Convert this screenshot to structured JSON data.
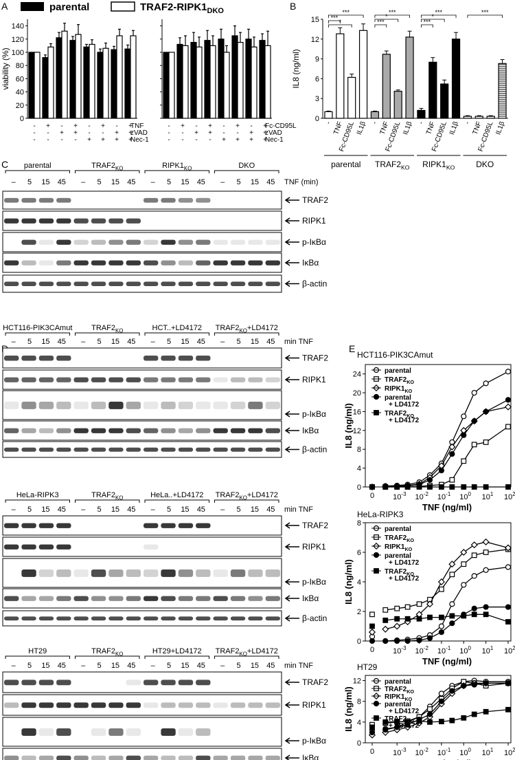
{
  "panels": [
    "A",
    "B",
    "C",
    "D",
    "E"
  ],
  "legend_a": [
    "parental",
    "TRAF2-RIPK1",
    "DKO"
  ],
  "panelA": {
    "ylabel": "viability (%)",
    "yticks": [
      0,
      20,
      40,
      60,
      80,
      100,
      120,
      140
    ],
    "left_rows": [
      {
        "label": "TNF",
        "signs": [
          "-",
          "+",
          "-",
          "+",
          "-",
          "+",
          "-",
          "+"
        ]
      },
      {
        "label": "zVAD",
        "signs": [
          "-",
          "-",
          "+",
          "+",
          "-",
          "-",
          "+",
          "+"
        ]
      },
      {
        "label": "Nec-1",
        "signs": [
          "-",
          "-",
          "-",
          "-",
          "+",
          "+",
          "+",
          "+"
        ]
      }
    ],
    "right_rows": [
      {
        "label": "Fc-CD95L",
        "signs": [
          "-",
          "+",
          "-",
          "+",
          "-",
          "+",
          "-",
          "+"
        ]
      },
      {
        "label": "zVAD",
        "signs": [
          "-",
          "-",
          "+",
          "+",
          "-",
          "-",
          "+",
          "+"
        ]
      },
      {
        "label": "Nec-1",
        "signs": [
          "-",
          "-",
          "-",
          "-",
          "+",
          "+",
          "+",
          "+"
        ]
      }
    ]
  },
  "panelB": {
    "ylabel": "IL8 (ng/ml)",
    "yticks": [
      0,
      3,
      6,
      9,
      12,
      15
    ],
    "treatments": [
      "-",
      "TNF",
      "Fc-CD95L",
      "IL1β"
    ],
    "group_labels": [
      {
        "main": "parental",
        "sub": ""
      },
      {
        "main": "TRAF2",
        "sub": "KO"
      },
      {
        "main": "RIPK1",
        "sub": "KO"
      },
      {
        "main": "DKO",
        "sub": ""
      }
    ],
    "sig": [
      "***",
      "*",
      "***",
      "***",
      "*",
      "***",
      "***",
      "*",
      "***",
      "***"
    ]
  },
  "panelC": {
    "groups": [
      {
        "main": "parental",
        "sub": ""
      },
      {
        "main": "TRAF2",
        "sub": "KO"
      },
      {
        "main": "RIPK1",
        "sub": "KO"
      },
      {
        "main": "DKO",
        "sub": ""
      }
    ],
    "times": [
      "–",
      "5",
      "15",
      "45"
    ],
    "time_label": "TNF (min)",
    "bands": [
      "TRAF2",
      "RIPK1",
      "p-IκBα",
      "IκBα",
      "β-actin"
    ]
  },
  "panelD": {
    "blocks": [
      {
        "groups": [
          {
            "main": "HCT116-PIK3CAmut",
            "sub": "",
            "tail": ""
          },
          {
            "main": "TRAF2",
            "sub": "KO",
            "tail": ""
          },
          {
            "main": "HCT..+LD4172",
            "sub": "",
            "tail": ""
          },
          {
            "main": "TRAF2",
            "sub": "KO",
            "tail": "+LD4172"
          }
        ]
      },
      {
        "groups": [
          {
            "main": "HeLa-RIPK3",
            "sub": "",
            "tail": ""
          },
          {
            "main": "TRAF2",
            "sub": "KO",
            "tail": ""
          },
          {
            "main": "HeLa..+LD4172",
            "sub": "",
            "tail": ""
          },
          {
            "main": "TRAF2",
            "sub": "KO",
            "tail": "+LD4172"
          }
        ]
      },
      {
        "groups": [
          {
            "main": "HT29",
            "sub": "",
            "tail": ""
          },
          {
            "main": "TRAF2",
            "sub": "KO",
            "tail": ""
          },
          {
            "main": "HT29+LD4172",
            "sub": "",
            "tail": ""
          },
          {
            "main": "TRAF2",
            "sub": "KO",
            "tail": "+LD4172"
          }
        ]
      }
    ],
    "times": [
      "–",
      "5",
      "15",
      "45"
    ],
    "time_label": "min TNF",
    "bands": [
      "TRAF2",
      "RIPK1",
      "p-IκBα",
      "IκBα",
      "β-actin"
    ]
  },
  "panelE": {
    "plots": [
      {
        "title": "HCT116-PIK3CAmut",
        "yticks": [
          0,
          4,
          8,
          12,
          16,
          20,
          24
        ]
      },
      {
        "title": "HeLa-RIPK3",
        "yticks": [
          0,
          2,
          4,
          6,
          8
        ]
      },
      {
        "title": "HT29",
        "yticks": [
          0,
          4,
          8,
          12
        ]
      }
    ],
    "ylabel": "IL8 (ng/ml)",
    "xlabel": "TNF (ng/ml)",
    "xtick_zero": "0",
    "xtick_base": "10",
    "xtick_exps": [
      "-3",
      "-2",
      "-1",
      "0",
      "1",
      "2"
    ],
    "legend": [
      {
        "main": "parental",
        "sub": "",
        "line2": "",
        "sub2": "",
        "line3": ""
      },
      {
        "main": "TRAF2",
        "sub": "KO",
        "line2": "",
        "sub2": "",
        "line3": ""
      },
      {
        "main": "RIPK1",
        "sub": "KO",
        "line2": "",
        "sub2": "",
        "line3": ""
      },
      {
        "main": "parental",
        "sub": "",
        "line2": "+ LD4172",
        "sub2": "",
        "line3": ""
      },
      {
        "main": "TRAF2",
        "sub": "KO",
        "line2": "+ LD4172",
        "sub2": "",
        "line3": ""
      }
    ]
  },
  "chart_data": [
    {
      "type": "bar",
      "panel": "A-left",
      "ylabel": "viability (%)",
      "ylim": [
        0,
        150
      ],
      "categories": [
        "1",
        "2",
        "3",
        "4",
        "5",
        "6",
        "7",
        "8"
      ],
      "series": [
        {
          "name": "parental",
          "values": [
            100,
            92,
            122,
            118,
            108,
            100,
            104,
            105
          ],
          "errors": [
            0,
            4,
            8,
            6,
            4,
            5,
            5,
            6
          ]
        },
        {
          "name": "TRAF2-RIPK1 DKO",
          "values": [
            100,
            108,
            132,
            127,
            112,
            106,
            125,
            125
          ],
          "errors": [
            0,
            5,
            12,
            15,
            7,
            8,
            10,
            8
          ]
        }
      ]
    },
    {
      "type": "bar",
      "panel": "A-right",
      "ylabel": "viability (%)",
      "ylim": [
        0,
        150
      ],
      "categories": [
        "1",
        "2",
        "3",
        "4",
        "5",
        "6",
        "7",
        "8"
      ],
      "series": [
        {
          "name": "parental",
          "values": [
            100,
            112,
            115,
            118,
            120,
            125,
            120,
            118
          ],
          "errors": [
            0,
            10,
            15,
            15,
            15,
            15,
            15,
            10
          ]
        },
        {
          "name": "TRAF2-RIPK1 DKO",
          "values": [
            100,
            110,
            108,
            110,
            100,
            115,
            108,
            110
          ],
          "errors": [
            0,
            15,
            15,
            15,
            10,
            15,
            15,
            22
          ]
        }
      ]
    },
    {
      "type": "bar",
      "panel": "B",
      "ylabel": "IL8 (ng/ml)",
      "ylim": [
        0,
        15
      ],
      "categories": [
        "parental -",
        "parental TNF",
        "parental Fc-CD95L",
        "parental IL1β",
        "TRAF2KO -",
        "TRAF2KO TNF",
        "TRAF2KO Fc-CD95L",
        "TRAF2KO IL1β",
        "RIPK1KO -",
        "RIPK1KO TNF",
        "RIPK1KO Fc-CD95L",
        "RIPK1KO IL1β",
        "DKO -",
        "DKO TNF",
        "DKO Fc-CD95L",
        "DKO IL1β"
      ],
      "values": [
        1.0,
        12.8,
        6.2,
        13.3,
        1.0,
        9.7,
        4.1,
        12.3,
        1.2,
        8.5,
        5.2,
        12.0,
        0.3,
        0.3,
        0.3,
        8.3
      ],
      "errors": [
        0.1,
        0.9,
        0.5,
        1.0,
        0.1,
        0.5,
        0.2,
        0.9,
        0.3,
        0.7,
        0.6,
        1.0,
        0.1,
        0.1,
        0.1,
        0.6
      ]
    },
    {
      "type": "line",
      "panel": "E-HCT116-PIK3CAmut",
      "title": "HCT116-PIK3CAmut",
      "xlabel": "TNF (ng/ml)",
      "ylabel": "IL8 (ng/ml)",
      "x": [
        0,
        0.0003,
        0.001,
        0.003,
        0.01,
        0.03,
        0.1,
        0.3,
        1,
        3,
        10,
        100
      ],
      "ylim": [
        0,
        26
      ],
      "series": [
        {
          "name": "parental",
          "values": [
            0,
            0.2,
            0.3,
            0.5,
            1.0,
            2.5,
            5.0,
            9.5,
            15.0,
            20.0,
            22.0,
            24.5
          ]
        },
        {
          "name": "TRAF2 KO",
          "values": [
            0,
            0,
            0,
            0,
            0.1,
            0.3,
            0.5,
            1.5,
            5.5,
            9.0,
            9.5,
            12.8
          ]
        },
        {
          "name": "RIPK1 KO",
          "values": [
            0,
            0.1,
            0.1,
            0.3,
            0.6,
            2.0,
            4.5,
            8.5,
            12.0,
            14.0,
            16.0,
            17.0
          ]
        },
        {
          "name": "parental + LD4172",
          "values": [
            0,
            0,
            0.1,
            0.2,
            0.5,
            1.5,
            3.5,
            7.0,
            11.0,
            14.0,
            16.0,
            18.5
          ]
        },
        {
          "name": "TRAF2 KO + LD4172",
          "values": [
            0,
            0,
            0,
            0,
            0,
            0,
            0,
            0,
            0,
            0,
            0,
            0
          ]
        }
      ]
    },
    {
      "type": "line",
      "panel": "E-HeLa-RIPK3",
      "title": "HeLa-RIPK3",
      "xlabel": "TNF (ng/ml)",
      "ylabel": "IL8 (ng/ml)",
      "x": [
        0,
        0.0003,
        0.001,
        0.003,
        0.01,
        0.03,
        0.1,
        0.3,
        1,
        3,
        10,
        100
      ],
      "ylim": [
        0,
        8
      ],
      "series": [
        {
          "name": "parental",
          "values": [
            0.3,
            0,
            0.05,
            0.1,
            0.2,
            0.4,
            1.0,
            2.5,
            3.8,
            4.4,
            4.8,
            5.0
          ]
        },
        {
          "name": "TRAF2 KO",
          "values": [
            1.8,
            2.1,
            2.2,
            2.3,
            2.5,
            2.8,
            3.5,
            4.5,
            5.2,
            5.8,
            6.0,
            6.2
          ]
        },
        {
          "name": "RIPK1 KO",
          "values": [
            0.6,
            0.8,
            1.0,
            1.3,
            1.8,
            2.5,
            4.0,
            5.2,
            6.0,
            6.5,
            6.7,
            6.3
          ]
        },
        {
          "name": "parental + LD4172",
          "values": [
            0,
            0,
            0,
            0,
            0.05,
            0.2,
            0.6,
            1.2,
            1.8,
            2.2,
            2.3,
            2.3
          ]
        },
        {
          "name": "TRAF2 KO + LD4172",
          "values": [
            1.0,
            1.4,
            1.5,
            1.5,
            1.5,
            1.6,
            1.6,
            1.7,
            1.7,
            1.8,
            1.8,
            1.3
          ]
        }
      ]
    },
    {
      "type": "line",
      "panel": "E-HT29",
      "title": "HT29",
      "xlabel": "TNF (ng/ml)",
      "ylabel": "IL8 (ng/ml)",
      "x": [
        0,
        0.0003,
        0.001,
        0.003,
        0.01,
        0.03,
        0.1,
        0.3,
        1,
        3,
        10,
        100
      ],
      "ylim": [
        0,
        13
      ],
      "series": [
        {
          "name": "parental",
          "values": [
            2.5,
            2.7,
            3.0,
            4.0,
            5.0,
            7.0,
            9.5,
            11.0,
            11.8,
            12.0,
            11.8,
            11.8
          ]
        },
        {
          "name": "TRAF2 KO",
          "values": [
            3.5,
            3.8,
            4.0,
            4.2,
            5.0,
            6.5,
            8.5,
            10.5,
            11.8,
            11.5,
            11.0,
            11.5
          ]
        },
        {
          "name": "RIPK1 KO",
          "values": [
            1.5,
            2.0,
            2.5,
            3.0,
            3.8,
            5.0,
            7.5,
            9.5,
            11.0,
            11.5,
            11.5,
            11.5
          ]
        },
        {
          "name": "parental + LD4172",
          "values": [
            2.0,
            2.5,
            3.0,
            3.5,
            4.5,
            5.5,
            8.0,
            10.0,
            11.0,
            11.2,
            11.5,
            11.5
          ]
        },
        {
          "name": "TRAF2 KO + LD4172",
          "values": [
            3.0,
            4.0,
            4.1,
            4.0,
            4.2,
            4.0,
            4.1,
            4.3,
            4.8,
            5.5,
            6.0,
            6.4
          ]
        }
      ]
    }
  ]
}
